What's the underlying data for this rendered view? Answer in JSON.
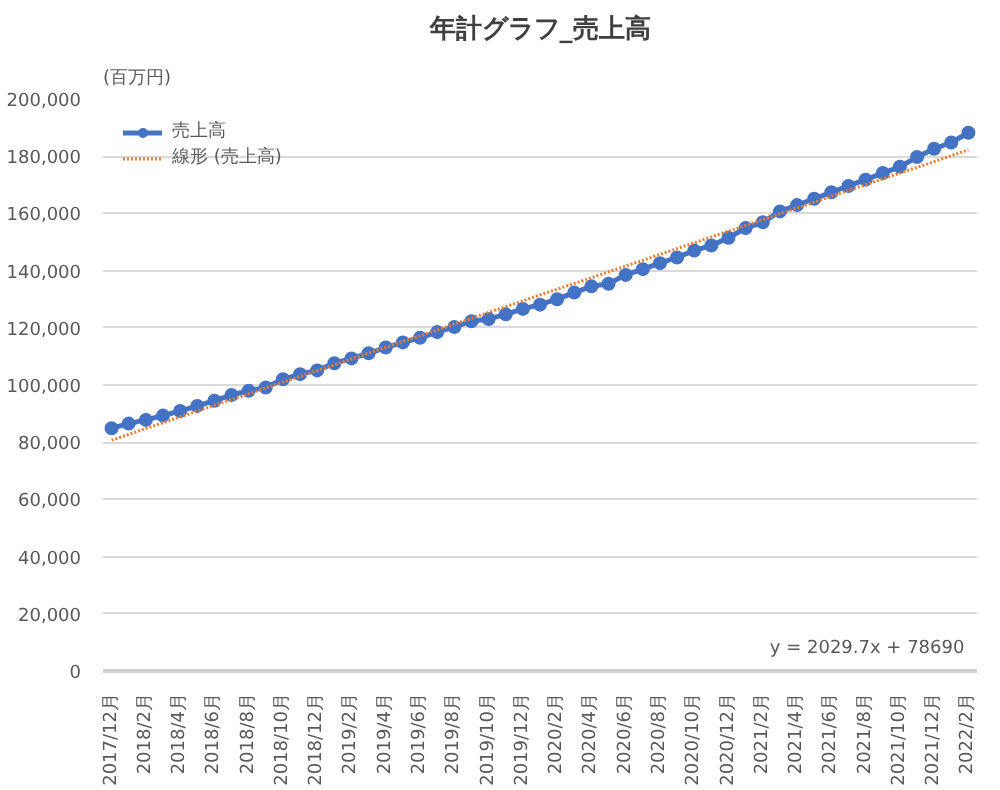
{
  "chart_data": {
    "type": "line",
    "title": "年計グラフ_売上高",
    "ylabel": "(百万円)",
    "categories": [
      "2017/12月",
      null,
      "2018/2月",
      null,
      "2018/4月",
      null,
      "2018/6月",
      null,
      "2018/8月",
      null,
      "2018/10月",
      null,
      "2018/12月",
      null,
      "2019/2月",
      null,
      "2019/4月",
      null,
      "2019/6月",
      null,
      "2019/8月",
      null,
      "2019/10月",
      null,
      "2019/12月",
      null,
      "2020/2月",
      null,
      "2020/4月",
      null,
      "2020/6月",
      null,
      "2020/8月",
      null,
      "2020/10月",
      null,
      "2020/12月",
      null,
      "2021/2月",
      null,
      "2021/4月",
      null,
      "2021/6月",
      null,
      "2021/8月",
      null,
      "2021/10月",
      null,
      "2021/12月",
      null,
      "2022/2月"
    ],
    "series": [
      {
        "name": "売上高",
        "color": "#4472c4",
        "marker": "circle",
        "values": [
          84900,
          86500,
          87800,
          89300,
          90900,
          92700,
          94500,
          96500,
          98000,
          99100,
          102000,
          103800,
          105100,
          107600,
          109300,
          111100,
          113100,
          114900,
          116500,
          118500,
          120300,
          122300,
          123100,
          124700,
          126600,
          128100,
          130000,
          132300,
          134500,
          135400,
          138500,
          140500,
          142600,
          144600,
          147000,
          148800,
          151500,
          154900,
          156900,
          160700,
          162900,
          165100,
          167400,
          169600,
          171800,
          174100,
          176300,
          179700,
          182600,
          184800,
          188200
        ]
      },
      {
        "name": "線形 (売上高)",
        "color": "#ed7d31",
        "line_style": "dotted",
        "marker": "none",
        "values": [
          80700,
          82700,
          84800,
          86800,
          88800,
          90900,
          92900,
          94900,
          96900,
          99000,
          101000,
          103000,
          105100,
          107100,
          109100,
          111200,
          113200,
          115200,
          117200,
          119300,
          121300,
          123300,
          125400,
          127400,
          129400,
          131500,
          133500,
          135500,
          137500,
          139600,
          141600,
          143600,
          145700,
          147700,
          149700,
          151800,
          153800,
          155800,
          157800,
          159900,
          161900,
          163900,
          166000,
          168000,
          170000,
          172100,
          174100,
          176100,
          178100,
          180200,
          182200
        ]
      }
    ],
    "ylim": [
      0,
      200000
    ],
    "yticks": [
      {
        "value": 0,
        "label": "0"
      },
      {
        "value": 20000,
        "label": "20,000"
      },
      {
        "value": 40000,
        "label": "40,000"
      },
      {
        "value": 60000,
        "label": "60,000"
      },
      {
        "value": 80000,
        "label": "80,000"
      },
      {
        "value": 100000,
        "label": "100,000"
      },
      {
        "value": 120000,
        "label": "120,000"
      },
      {
        "value": 140000,
        "label": "140,000"
      },
      {
        "value": 160000,
        "label": "160,000"
      },
      {
        "value": 180000,
        "label": "180,000"
      },
      {
        "value": 200000,
        "label": "200,000"
      }
    ],
    "grid": "y",
    "legend": "top left",
    "annotations": [
      "y = 2029.7x + 78690"
    ]
  }
}
